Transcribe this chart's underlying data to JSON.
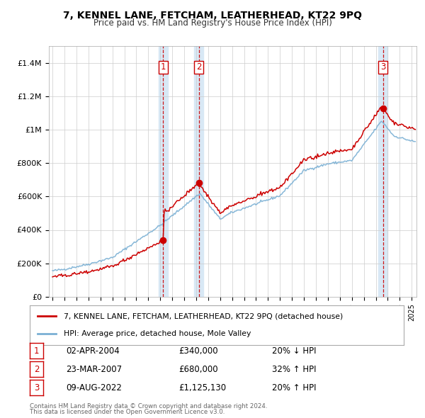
{
  "title": "7, KENNEL LANE, FETCHAM, LEATHERHEAD, KT22 9PQ",
  "subtitle": "Price paid vs. HM Land Registry's House Price Index (HPI)",
  "hpi_color": "#7ab0d4",
  "price_color": "#cc0000",
  "background_color": "#ffffff",
  "grid_color": "#cccccc",
  "purchase_color_fill": "#d8e8f5",
  "ylim": [
    0,
    1500000
  ],
  "yticks": [
    0,
    200000,
    400000,
    600000,
    800000,
    1000000,
    1200000,
    1400000
  ],
  "ytick_labels": [
    "£0",
    "£200K",
    "£400K",
    "£600K",
    "£800K",
    "£1M",
    "£1.2M",
    "£1.4M"
  ],
  "xlim_start": 1994.7,
  "xlim_end": 2025.4,
  "purchases": [
    {
      "label": "1",
      "date": 2004.25,
      "price": 340000,
      "date_str": "02-APR-2004",
      "price_str": "£340,000",
      "pct_str": "20% ↓ HPI"
    },
    {
      "label": "2",
      "date": 2007.22,
      "price": 680000,
      "date_str": "23-MAR-2007",
      "price_str": "£680,000",
      "pct_str": "32% ↑ HPI"
    },
    {
      "label": "3",
      "date": 2022.6,
      "price": 1125130,
      "date_str": "09-AUG-2022",
      "price_str": "£1,125,130",
      "pct_str": "20% ↑ HPI"
    }
  ],
  "legend_label_price": "7, KENNEL LANE, FETCHAM, LEATHERHEAD, KT22 9PQ (detached house)",
  "legend_label_hpi": "HPI: Average price, detached house, Mole Valley",
  "footnote1": "Contains HM Land Registry data © Crown copyright and database right 2024.",
  "footnote2": "This data is licensed under the Open Government Licence v3.0."
}
